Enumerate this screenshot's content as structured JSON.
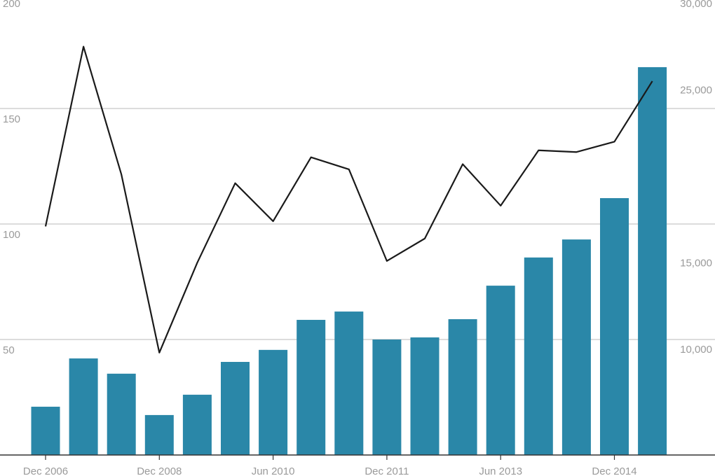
{
  "chart_data": {
    "type": "bar_line",
    "categories": [
      "Dec 2006",
      null,
      null,
      "Dec 2008",
      null,
      null,
      "Jun 2010",
      null,
      null,
      "Dec 2011",
      null,
      null,
      "Jun 2013",
      null,
      null,
      "Dec 2014",
      null
    ],
    "series": [
      {
        "type": "bar",
        "color": "#2a87a8",
        "values": [
          20.9,
          41.8,
          35.2,
          17.3,
          26.1,
          40.3,
          45.5,
          58.5,
          62.1,
          50,
          50.9,
          58.8,
          73.3,
          85.5,
          93.3,
          111.2,
          167.9
        ]
      },
      {
        "type": "line",
        "axis": "y2",
        "color": "#1a1a1a",
        "values": [
          16500,
          26900,
          19500,
          9200,
          14400,
          19000,
          16800,
          20500,
          19800,
          14500,
          15800,
          20100,
          17700,
          20900,
          20800,
          21400,
          24900
        ]
      }
    ],
    "ylim": [
      0,
      200
    ],
    "yticks": [
      50,
      100,
      150,
      200
    ],
    "y2lim": [
      3280,
      30000
    ],
    "y2ticks": [
      {
        "value": 10000,
        "label": "10,000"
      },
      {
        "value": 15000,
        "label": "15,000"
      },
      {
        "value": 25000,
        "label": "25,000"
      },
      {
        "value": 30000,
        "label": "30,000"
      }
    ],
    "grid": true
  }
}
